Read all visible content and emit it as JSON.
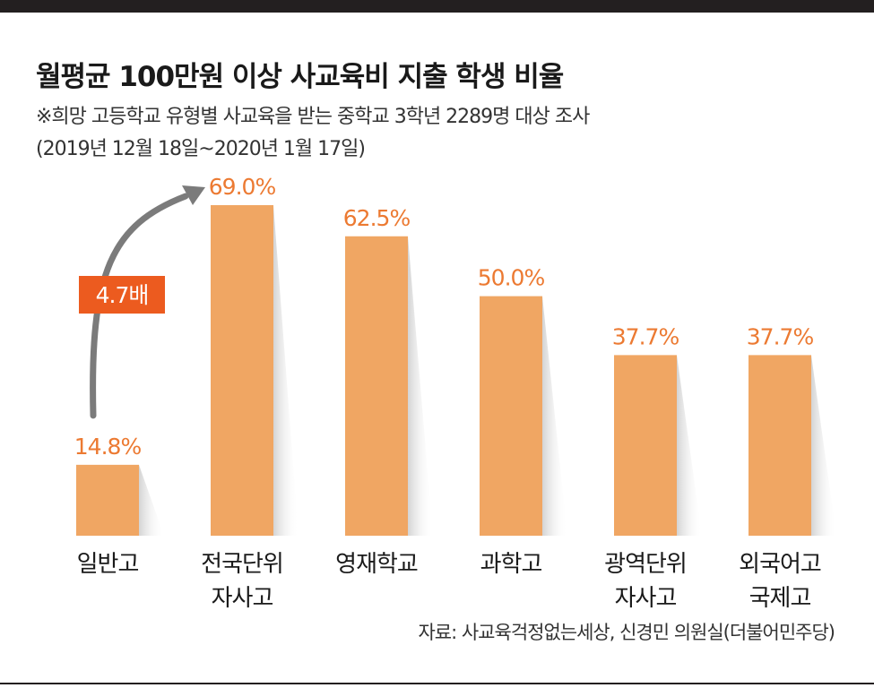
{
  "header": {
    "title": "월평균 100만원 이상 사교육비 지출 학생 비율",
    "subtitle": "※희망 고등학교 유형별 사교육을 받는 중학교 3학년 2289명 대상 조사",
    "period": "(2019년 12월 18일~2020년 1월 17일)"
  },
  "footer": {
    "source": "자료: 사교육걱정없는세상, 신경민 의원실(더불어민주당)"
  },
  "colors": {
    "bar": "#f0a663",
    "value_text": "#ec7a32",
    "arrow": "#7b7b7b",
    "badge": "#ec5b1f",
    "badge_text": "#ffffff",
    "shadow": "#d9d9d9"
  },
  "chart_data": {
    "type": "bar",
    "categories": [
      [
        "일반고"
      ],
      [
        "전국단위",
        "자사고"
      ],
      [
        "영재학교"
      ],
      [
        "과학고"
      ],
      [
        "광역단위",
        "자사고"
      ],
      [
        "외국어고",
        "국제고"
      ]
    ],
    "values": [
      14.8,
      69.0,
      62.5,
      50.0,
      37.7,
      37.7
    ],
    "value_labels": [
      "14.8%",
      "69.0%",
      "62.5%",
      "50.0%",
      "37.7%",
      "37.7%"
    ],
    "unit": "%",
    "ylim": [
      0,
      69
    ],
    "grid": false,
    "legend": "none",
    "annotation": {
      "text": "4.7배",
      "from_category": 0,
      "to_category": 1
    }
  }
}
